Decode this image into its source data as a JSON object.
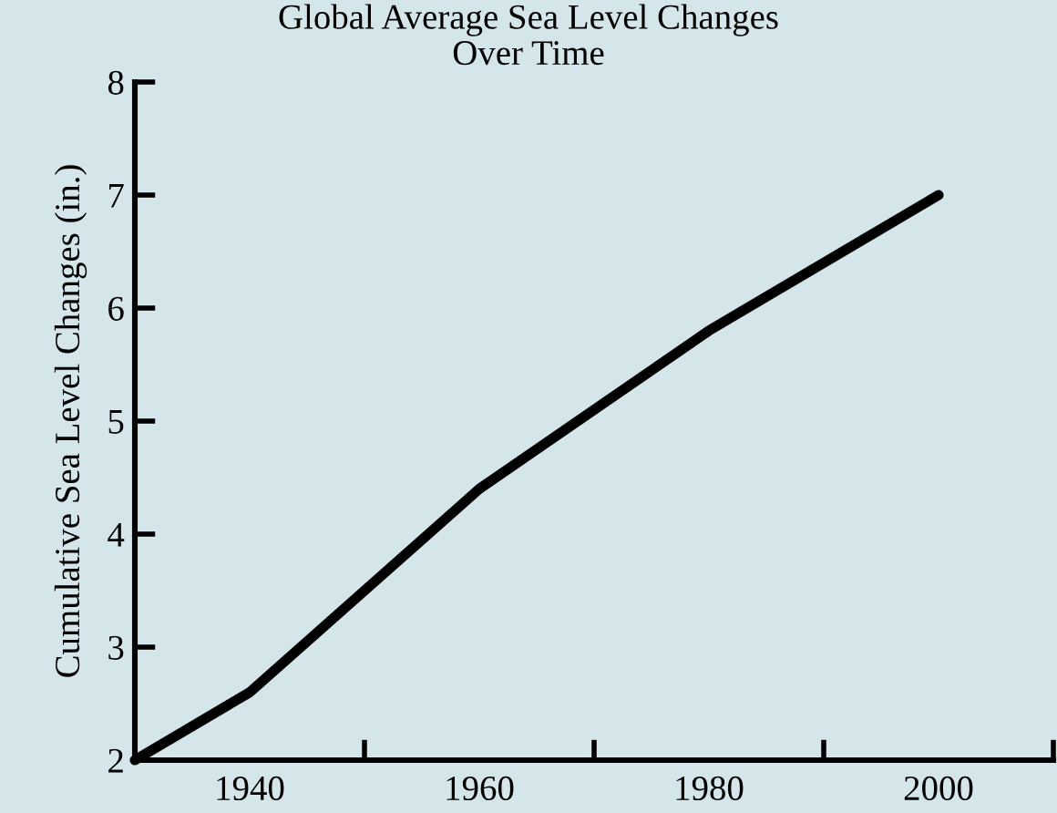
{
  "chart_data": {
    "type": "line",
    "title": "Global Average Sea Level Changes\nOver Time",
    "ylabel": "Cumulative Sea Level Changes (in.)",
    "x": [
      1930,
      1940,
      1960,
      1980,
      2000
    ],
    "series": [
      {
        "color": "#000000",
        "values": [
          2,
          2.6,
          4.4,
          5.8,
          7.0
        ]
      }
    ],
    "xlim": [
      1930,
      2010
    ],
    "xticks": [
      {
        "value": 1940,
        "label": "1940"
      },
      {
        "value": 1950,
        "label": null
      },
      {
        "value": 1960,
        "label": "1960"
      },
      {
        "value": 1970,
        "label": null
      },
      {
        "value": 1980,
        "label": "1980"
      },
      {
        "value": 1990,
        "label": null
      },
      {
        "value": 2000,
        "label": "2000"
      },
      {
        "value": 2010,
        "label": null
      }
    ],
    "ylim": [
      2,
      8
    ],
    "yticks": [
      2,
      3,
      4,
      5,
      6,
      7,
      8
    ],
    "grid": false,
    "legend": false,
    "marker": "none",
    "line_style": "solid"
  }
}
